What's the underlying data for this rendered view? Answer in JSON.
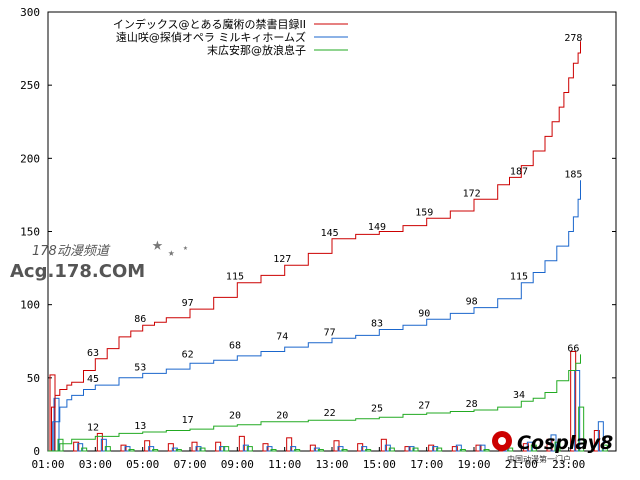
{
  "chart_data": {
    "type": "line",
    "title": "",
    "xlabel": "",
    "ylabel": "",
    "ylim": [
      0,
      300
    ],
    "yticks": [
      0,
      50,
      100,
      150,
      200,
      250,
      300
    ],
    "xlim": [
      0,
      24
    ],
    "xtick_labels": [
      "01:00",
      "03:00",
      "05:00",
      "07:00",
      "09:00",
      "11:00",
      "13:00",
      "15:00",
      "17:00",
      "19:00",
      "21:00",
      "23:00"
    ],
    "legend_position": "top-right",
    "series": [
      {
        "name": "インデックス@とある魔術の禁書目録II",
        "color": "#cc0000",
        "x": [
          0,
          0.15,
          0.3,
          0.5,
          0.8,
          1,
          1.5,
          2,
          2.5,
          3,
          3.5,
          4,
          4.5,
          5,
          6,
          7,
          8,
          9,
          10,
          11,
          12,
          13,
          14,
          15,
          16,
          17,
          18,
          19,
          19.5,
          20,
          20.5,
          21,
          21.3,
          21.6,
          21.8,
          22,
          22.2,
          22.4,
          22.5
        ],
        "y": [
          0,
          30,
          38,
          42,
          45,
          47,
          55,
          63,
          70,
          78,
          82,
          86,
          88,
          91,
          97,
          105,
          115,
          120,
          127,
          135,
          145,
          148,
          150,
          154,
          159,
          164,
          172,
          182,
          187,
          195,
          205,
          215,
          225,
          235,
          245,
          255,
          265,
          272,
          280
        ]
      },
      {
        "name": "遠山咲@探偵オペラ ミルキィホームズ",
        "color": "#1a66cc",
        "x": [
          0,
          0.2,
          0.5,
          0.8,
          1,
          1.5,
          2,
          3,
          4,
          5,
          6,
          7,
          8,
          9,
          10,
          11,
          12,
          13,
          14,
          15,
          16,
          17,
          18,
          19,
          20,
          20.5,
          21,
          21.5,
          22,
          22.2,
          22.4,
          22.5
        ],
        "y": [
          0,
          20,
          30,
          35,
          38,
          42,
          45,
          50,
          53,
          56,
          60,
          62,
          65,
          68,
          71,
          74,
          77,
          79,
          83,
          86,
          90,
          94,
          98,
          104,
          115,
          122,
          130,
          140,
          150,
          160,
          172,
          185
        ]
      },
      {
        "name": "末広安那@放浪息子",
        "color": "#22aa22",
        "x": [
          0,
          0.5,
          1,
          2,
          3,
          4,
          5,
          6,
          7,
          8,
          9,
          10,
          11,
          12,
          13,
          14,
          15,
          16,
          17,
          18,
          19,
          20,
          20.5,
          21,
          21.5,
          22,
          22.3,
          22.5
        ],
        "y": [
          0,
          5,
          8,
          10,
          12,
          13,
          14,
          15,
          17,
          18,
          20,
          20,
          21,
          21,
          22,
          23,
          25,
          26,
          27,
          28,
          30,
          34,
          36,
          40,
          48,
          55,
          60,
          66
        ]
      }
    ],
    "data_labels": [
      {
        "series": 0,
        "x": 1.9,
        "y": 63,
        "text": "63"
      },
      {
        "series": 0,
        "x": 3.9,
        "y": 86,
        "text": "86"
      },
      {
        "series": 0,
        "x": 5.9,
        "y": 97,
        "text": "97"
      },
      {
        "series": 0,
        "x": 7.9,
        "y": 115,
        "text": "115"
      },
      {
        "series": 0,
        "x": 9.9,
        "y": 127,
        "text": "127"
      },
      {
        "series": 0,
        "x": 11.9,
        "y": 145,
        "text": "145"
      },
      {
        "series": 0,
        "x": 13.9,
        "y": 149,
        "text": "149"
      },
      {
        "series": 0,
        "x": 15.9,
        "y": 159,
        "text": "159"
      },
      {
        "series": 0,
        "x": 17.9,
        "y": 172,
        "text": "172"
      },
      {
        "series": 0,
        "x": 19.9,
        "y": 187,
        "text": "187"
      },
      {
        "series": 0,
        "x": 22.2,
        "y": 278,
        "text": "278"
      },
      {
        "series": 1,
        "x": 1.9,
        "y": 45,
        "text": "45"
      },
      {
        "series": 1,
        "x": 3.9,
        "y": 53,
        "text": "53"
      },
      {
        "series": 1,
        "x": 5.9,
        "y": 62,
        "text": "62"
      },
      {
        "series": 1,
        "x": 7.9,
        "y": 68,
        "text": "68"
      },
      {
        "series": 1,
        "x": 9.9,
        "y": 74,
        "text": "74"
      },
      {
        "series": 1,
        "x": 11.9,
        "y": 77,
        "text": "77"
      },
      {
        "series": 1,
        "x": 13.9,
        "y": 83,
        "text": "83"
      },
      {
        "series": 1,
        "x": 15.9,
        "y": 90,
        "text": "90"
      },
      {
        "series": 1,
        "x": 17.9,
        "y": 98,
        "text": "98"
      },
      {
        "series": 1,
        "x": 19.9,
        "y": 115,
        "text": "115"
      },
      {
        "series": 1,
        "x": 22.2,
        "y": 185,
        "text": "185"
      },
      {
        "series": 2,
        "x": 1.9,
        "y": 12,
        "text": "12"
      },
      {
        "series": 2,
        "x": 3.9,
        "y": 13,
        "text": "13"
      },
      {
        "series": 2,
        "x": 5.9,
        "y": 17,
        "text": "17"
      },
      {
        "series": 2,
        "x": 7.9,
        "y": 20,
        "text": "20"
      },
      {
        "series": 2,
        "x": 9.9,
        "y": 20,
        "text": "20"
      },
      {
        "series": 2,
        "x": 11.9,
        "y": 22,
        "text": "22"
      },
      {
        "series": 2,
        "x": 13.9,
        "y": 25,
        "text": "25"
      },
      {
        "series": 2,
        "x": 15.9,
        "y": 27,
        "text": "27"
      },
      {
        "series": 2,
        "x": 17.9,
        "y": 28,
        "text": "28"
      },
      {
        "series": 2,
        "x": 19.9,
        "y": 34,
        "text": "34"
      },
      {
        "series": 2,
        "x": 22.2,
        "y": 66,
        "text": "66"
      }
    ],
    "hourly_bars": {
      "red": [
        52,
        6,
        12,
        4,
        7,
        5,
        6,
        6,
        10,
        5,
        9,
        4,
        7,
        5,
        8,
        3,
        4,
        3,
        4,
        3,
        5,
        8,
        68,
        14
      ],
      "blue": [
        36,
        5,
        8,
        3,
        3,
        2,
        3,
        3,
        4,
        3,
        3,
        2,
        3,
        3,
        4,
        3,
        3,
        4,
        4,
        6,
        6,
        11,
        55,
        20
      ],
      "green": [
        8,
        2,
        3,
        1,
        1,
        1,
        2,
        3,
        3,
        1,
        1,
        1,
        1,
        1,
        2,
        2,
        2,
        1,
        1,
        2,
        4,
        6,
        30,
        4
      ]
    }
  },
  "watermarks": {
    "left_line1": "178动漫频道",
    "left_line2": "Acg.178.COM",
    "right_line1": "Cosplay8",
    "right_line2": "中国动漫第一门户"
  }
}
